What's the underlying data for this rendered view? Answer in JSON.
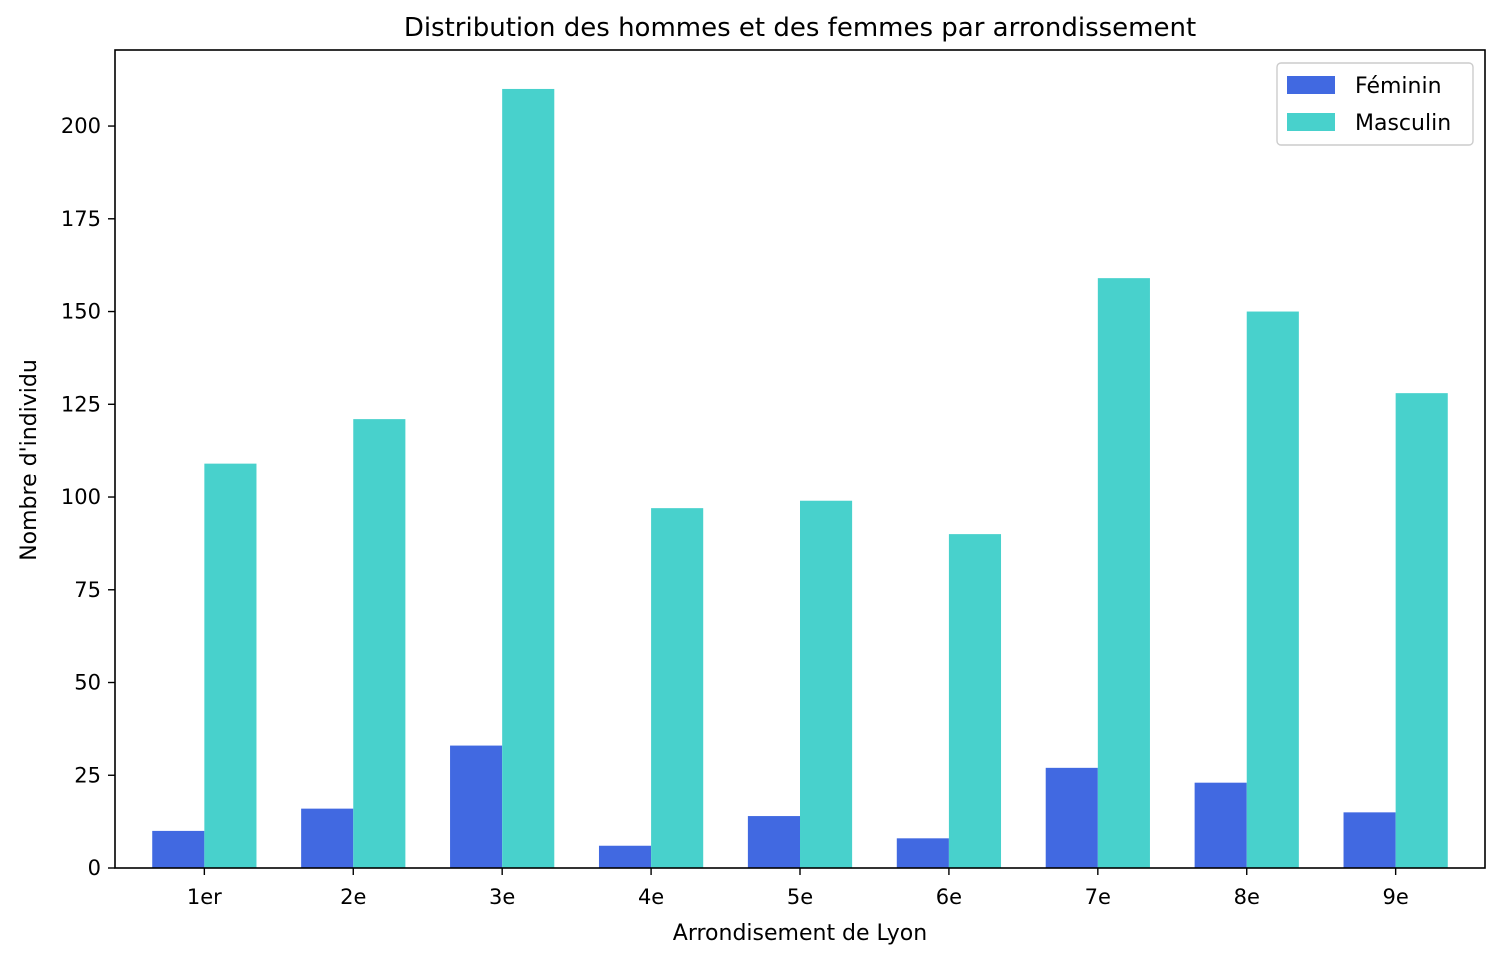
{
  "chart_data": {
    "type": "bar",
    "title": "Distribution des hommes et des femmes par arrondissement",
    "xlabel": "Arrondisement de Lyon",
    "ylabel": "Nombre d'individu",
    "categories": [
      "1er",
      "2e",
      "3e",
      "4e",
      "5e",
      "6e",
      "7e",
      "8e",
      "9e"
    ],
    "series": [
      {
        "name": "Féminin",
        "color": "#4169e1",
        "values": [
          10,
          16,
          33,
          6,
          14,
          8,
          27,
          23,
          15
        ]
      },
      {
        "name": "Masculin",
        "color": "#48d1cc",
        "values": [
          109,
          121,
          210,
          97,
          99,
          90,
          159,
          150,
          128
        ]
      }
    ],
    "ylim": [
      0,
      220.5
    ],
    "yticks": [
      0,
      25,
      50,
      75,
      100,
      125,
      150,
      175,
      200
    ],
    "grid": false,
    "legend_position": "top-right"
  }
}
